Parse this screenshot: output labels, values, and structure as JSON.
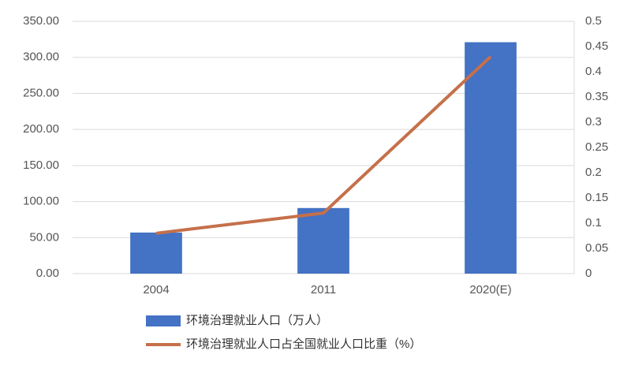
{
  "chart_data": {
    "type": "combo",
    "categories": [
      "2004",
      "2011",
      "2020(E)"
    ],
    "series": [
      {
        "name": "环境治理就业人口（万人）",
        "type": "bar",
        "color": "#4472c4",
        "values": [
          57,
          91,
          321
        ]
      },
      {
        "name": "环境治理就业人口占全国就业人口比重（%）",
        "type": "line",
        "axis": "y2",
        "color": "#c5704a",
        "values": [
          0.08,
          0.12,
          0.43
        ]
      }
    ],
    "ylim": [
      0,
      350
    ],
    "yticks": [
      {
        "value": 0,
        "label": "0.00"
      },
      {
        "value": 50,
        "label": "50.00"
      },
      {
        "value": 100,
        "label": "100.00"
      },
      {
        "value": 150,
        "label": "150.00"
      },
      {
        "value": 200,
        "label": "200.00"
      },
      {
        "value": 250,
        "label": "250.00"
      },
      {
        "value": 300,
        "label": "300.00"
      },
      {
        "value": 350,
        "label": "350.00"
      }
    ],
    "y2lim": [
      0,
      0.5
    ],
    "y2ticks": [
      0,
      0.05,
      0.1,
      0.15,
      0.2,
      0.25,
      0.3,
      0.35,
      0.4,
      0.45,
      0.5
    ],
    "grid": true
  }
}
